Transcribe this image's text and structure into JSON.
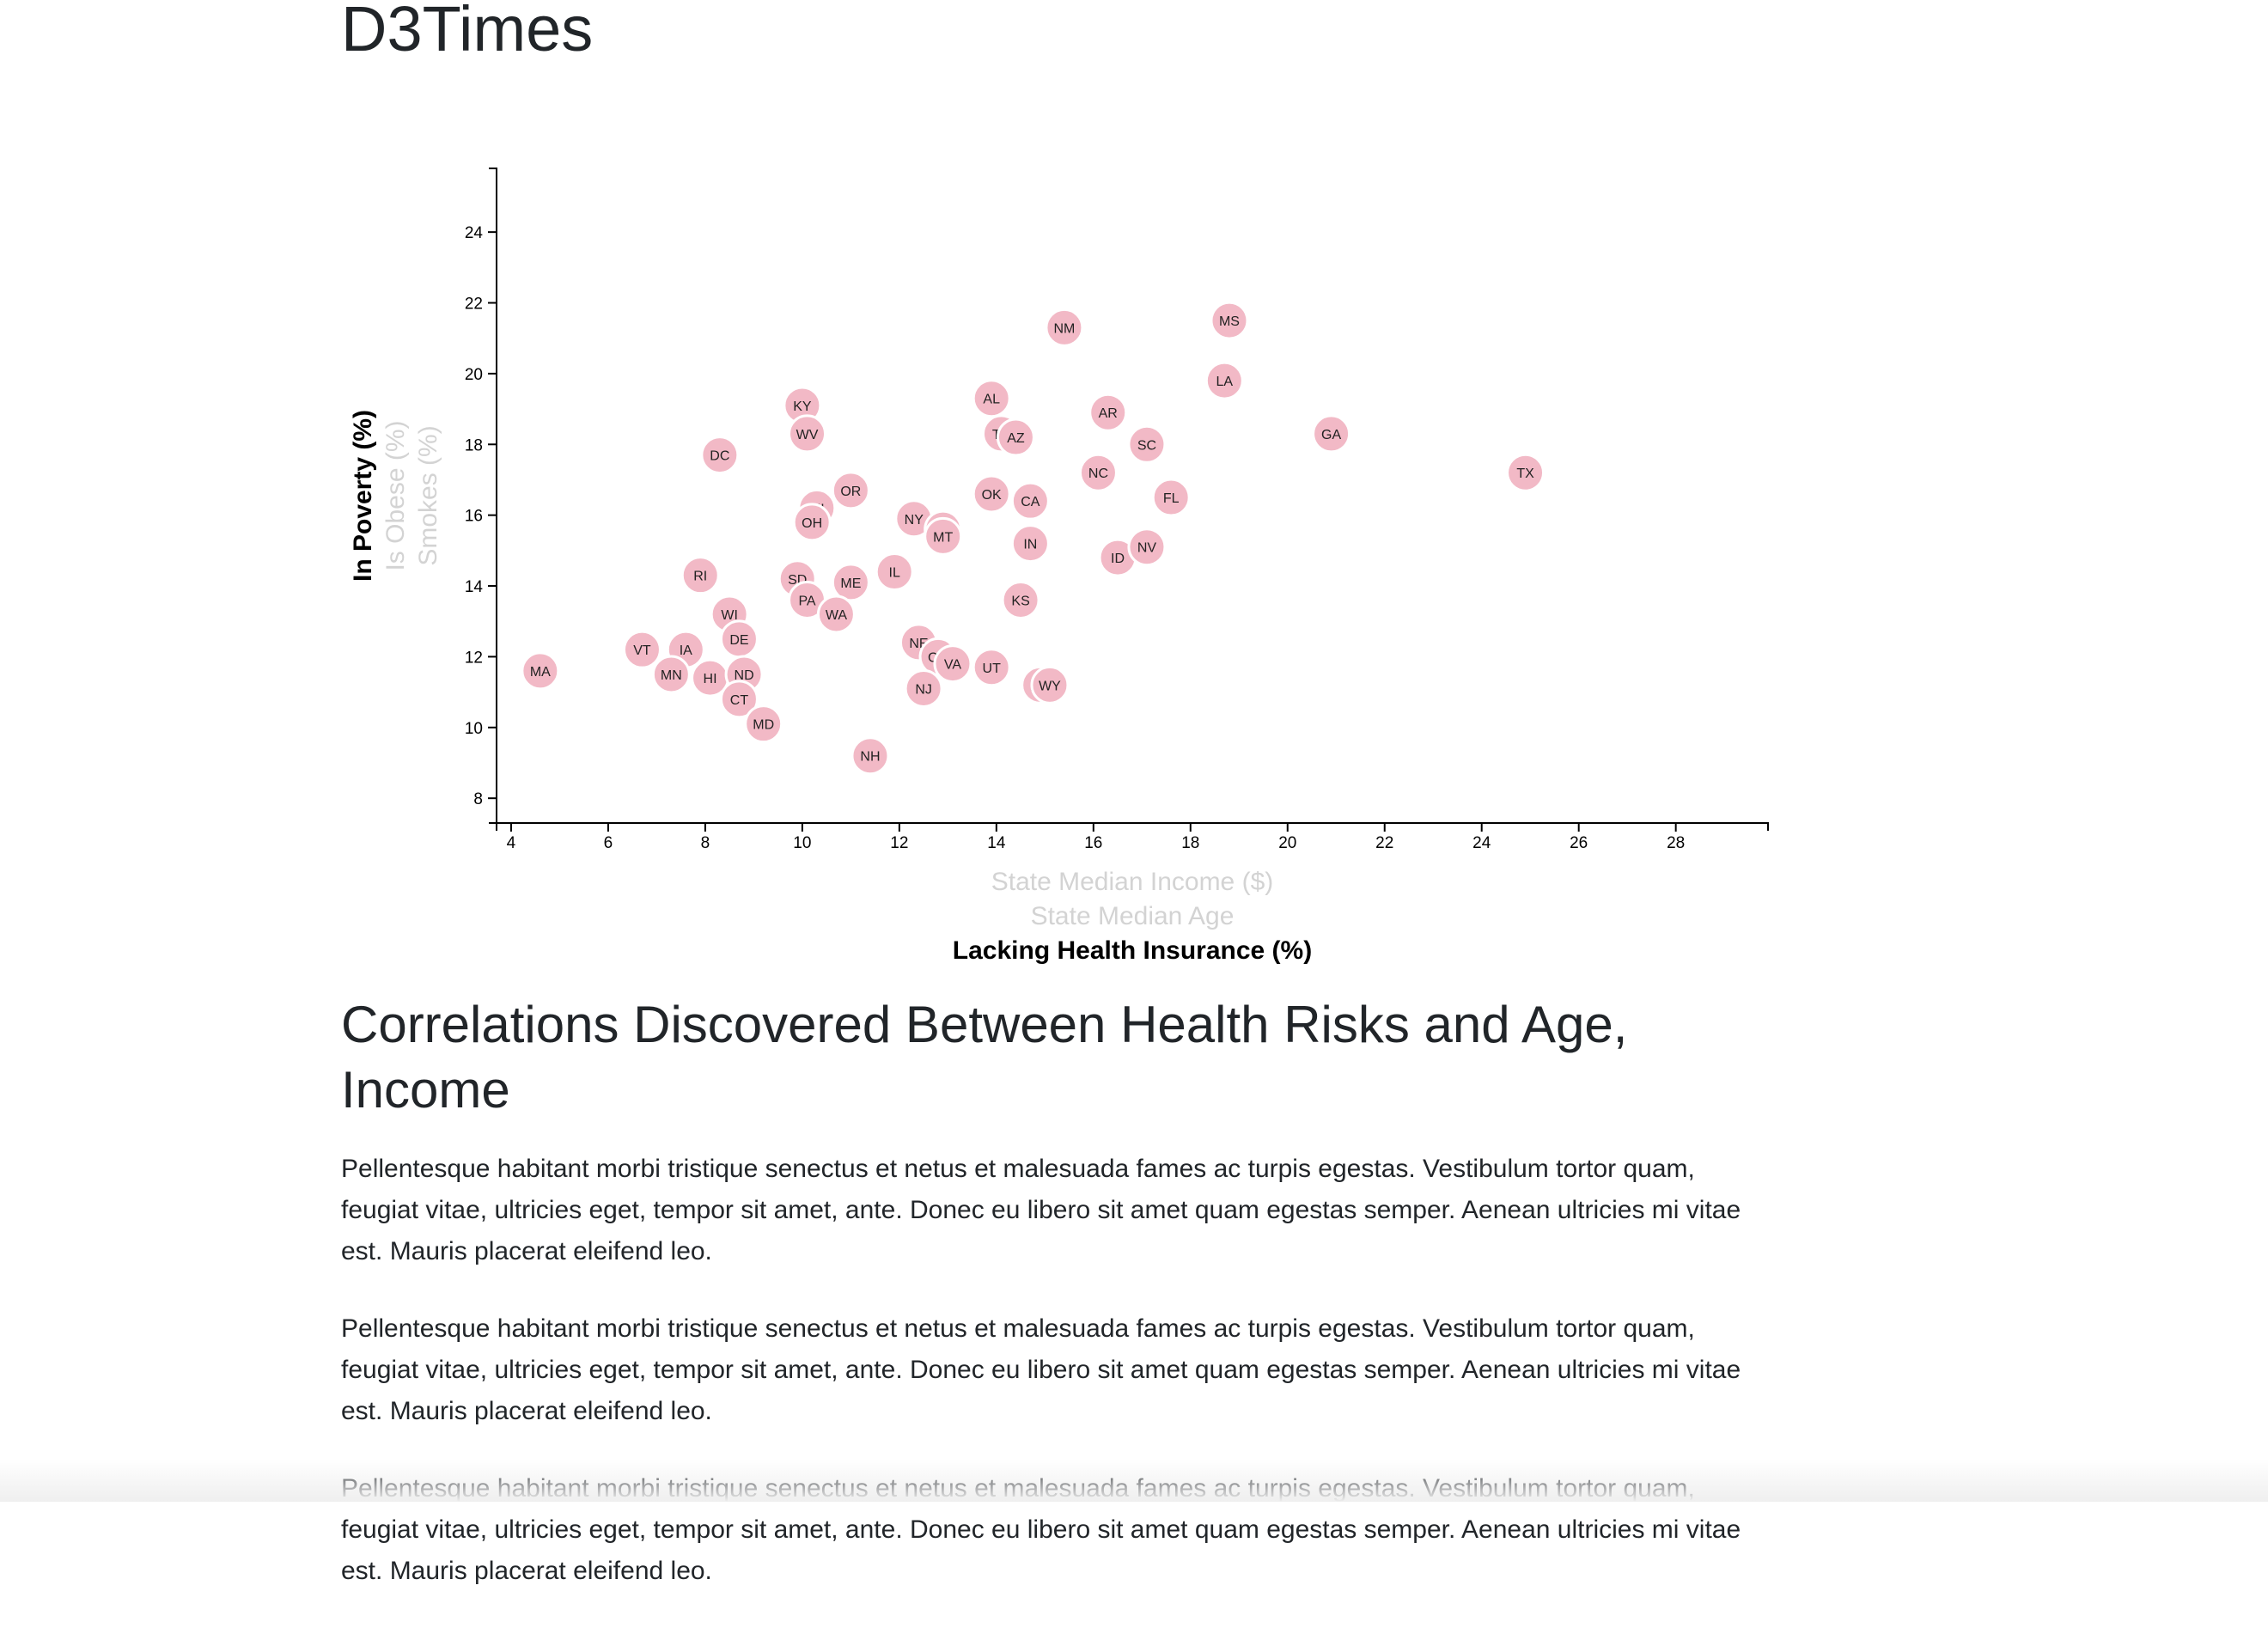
{
  "page": {
    "title": "D3Times"
  },
  "article": {
    "heading": "Correlations Discovered Between Health Risks and Age, Income",
    "paragraphs": [
      "Pellentesque habitant morbi tristique senectus et netus et malesuada fames ac turpis egestas. Vestibulum tortor quam, feugiat vitae, ultricies eget, tempor sit amet, ante. Donec eu libero sit amet quam egestas semper. Aenean ultricies mi vitae est. Mauris placerat eleifend leo.",
      "Pellentesque habitant morbi tristique senectus et netus et malesuada fames ac turpis egestas. Vestibulum tortor quam, feugiat vitae, ultricies eget, tempor sit amet, ante. Donec eu libero sit amet quam egestas semper. Aenean ultricies mi vitae est. Mauris placerat eleifend leo.",
      "Pellentesque habitant morbi tristique senectus et netus et malesuada fames ac turpis egestas. Vestibulum tortor quam, feugiat vitae, ultricies eget, tempor sit amet, ante. Donec eu libero sit amet quam egestas semper. Aenean ultricies mi vitae est. Mauris placerat eleifend leo."
    ]
  },
  "chart_data": {
    "type": "scatter",
    "x_axis": {
      "active_label": "Lacking Health Insurance (%)",
      "inactive_labels": [
        "State Median Income ($)",
        "State Median Age"
      ],
      "xlim": [
        3.7,
        29.9
      ],
      "ticks": [
        4,
        6,
        8,
        10,
        12,
        14,
        16,
        18,
        20,
        22,
        24,
        26,
        28
      ]
    },
    "y_axis": {
      "active_label": "In Poverty (%)",
      "inactive_labels": [
        "Is Obese (%)",
        "Smokes (%)"
      ],
      "ylim": [
        7.3,
        25.8
      ],
      "ticks": [
        8,
        10,
        12,
        14,
        16,
        18,
        20,
        22,
        24
      ]
    },
    "grid": false,
    "colors": {
      "point_fill": "#f2b9c6",
      "active_label": "#000000",
      "inactive_label": "#d3d3d3"
    },
    "points": [
      {
        "abbr": "MA",
        "x": 4.6,
        "y": 11.6
      },
      {
        "abbr": "VT",
        "x": 6.7,
        "y": 12.2
      },
      {
        "abbr": "IA",
        "x": 7.6,
        "y": 12.2
      },
      {
        "abbr": "MN",
        "x": 7.3,
        "y": 11.5
      },
      {
        "abbr": "HI",
        "x": 8.1,
        "y": 11.4
      },
      {
        "abbr": "RI",
        "x": 7.9,
        "y": 14.3
      },
      {
        "abbr": "DC",
        "x": 8.3,
        "y": 17.7
      },
      {
        "abbr": "WI",
        "x": 8.5,
        "y": 13.2
      },
      {
        "abbr": "DE",
        "x": 8.7,
        "y": 12.5
      },
      {
        "abbr": "ND",
        "x": 8.8,
        "y": 11.5
      },
      {
        "abbr": "CT",
        "x": 8.7,
        "y": 10.8
      },
      {
        "abbr": "MD",
        "x": 9.2,
        "y": 10.1
      },
      {
        "abbr": "KY",
        "x": 10.0,
        "y": 19.1
      },
      {
        "abbr": "WV",
        "x": 10.1,
        "y": 18.3
      },
      {
        "abbr": "MI",
        "x": 10.3,
        "y": 16.2
      },
      {
        "abbr": "OH",
        "x": 10.2,
        "y": 15.8
      },
      {
        "abbr": "SD",
        "x": 9.9,
        "y": 14.2
      },
      {
        "abbr": "PA",
        "x": 10.1,
        "y": 13.6
      },
      {
        "abbr": "ME",
        "x": 11.0,
        "y": 14.1
      },
      {
        "abbr": "WA",
        "x": 10.7,
        "y": 13.2
      },
      {
        "abbr": "OR",
        "x": 11.0,
        "y": 16.7
      },
      {
        "abbr": "NH",
        "x": 11.4,
        "y": 9.2
      },
      {
        "abbr": "IL",
        "x": 11.9,
        "y": 14.4
      },
      {
        "abbr": "NY",
        "x": 12.3,
        "y": 15.9
      },
      {
        "abbr": "MO",
        "x": 12.9,
        "y": 15.6
      },
      {
        "abbr": "MT",
        "x": 12.9,
        "y": 15.4
      },
      {
        "abbr": "NE",
        "x": 12.4,
        "y": 12.4
      },
      {
        "abbr": "CO",
        "x": 12.8,
        "y": 12.0
      },
      {
        "abbr": "VA",
        "x": 13.1,
        "y": 11.8
      },
      {
        "abbr": "NJ",
        "x": 12.5,
        "y": 11.1
      },
      {
        "abbr": "UT",
        "x": 13.9,
        "y": 11.7
      },
      {
        "abbr": "AL",
        "x": 13.9,
        "y": 19.3
      },
      {
        "abbr": "TN",
        "x": 14.1,
        "y": 18.3
      },
      {
        "abbr": "AZ",
        "x": 14.4,
        "y": 18.2
      },
      {
        "abbr": "OK",
        "x": 13.9,
        "y": 16.6
      },
      {
        "abbr": "CA",
        "x": 14.7,
        "y": 16.4
      },
      {
        "abbr": "IN",
        "x": 14.7,
        "y": 15.2
      },
      {
        "abbr": "KS",
        "x": 14.5,
        "y": 13.6
      },
      {
        "abbr": "AK",
        "x": 14.9,
        "y": 11.2
      },
      {
        "abbr": "WY",
        "x": 15.1,
        "y": 11.2
      },
      {
        "abbr": "NM",
        "x": 15.4,
        "y": 21.3
      },
      {
        "abbr": "AR",
        "x": 16.3,
        "y": 18.9
      },
      {
        "abbr": "NC",
        "x": 16.1,
        "y": 17.2
      },
      {
        "abbr": "ID",
        "x": 16.5,
        "y": 14.8
      },
      {
        "abbr": "SC",
        "x": 17.1,
        "y": 18.0
      },
      {
        "abbr": "NV",
        "x": 17.1,
        "y": 15.1
      },
      {
        "abbr": "FL",
        "x": 17.6,
        "y": 16.5
      },
      {
        "abbr": "MS",
        "x": 18.8,
        "y": 21.5
      },
      {
        "abbr": "LA",
        "x": 18.7,
        "y": 19.8
      },
      {
        "abbr": "GA",
        "x": 20.9,
        "y": 18.3
      },
      {
        "abbr": "TX",
        "x": 24.9,
        "y": 17.2
      }
    ]
  }
}
